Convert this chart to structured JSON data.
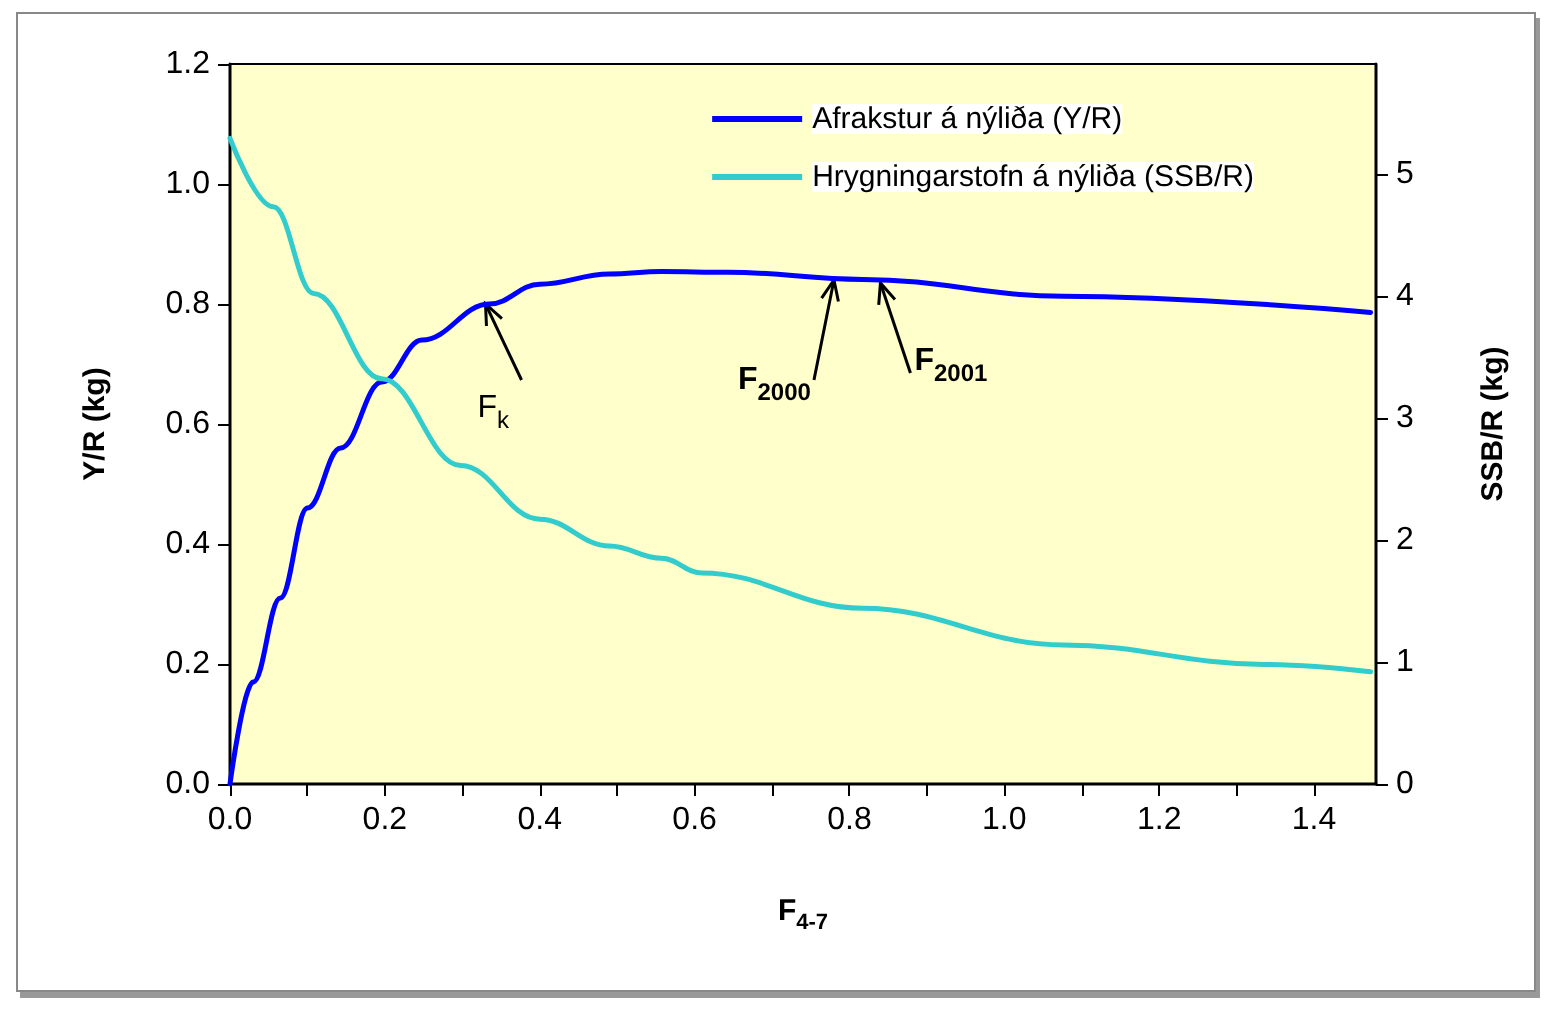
{
  "chart_data": {
    "type": "line",
    "xlabel": "F$_{4-7}$",
    "ylabel": "Y/R (kg)",
    "y2label": "SSB/R (kg)",
    "xlim": [
      0,
      1.48
    ],
    "xticks": [
      {
        "value": 0,
        "label": "0.0"
      },
      {
        "value": 0.1,
        "label": null
      },
      {
        "value": 0.2,
        "label": "0.2"
      },
      {
        "value": 0.3,
        "label": null
      },
      {
        "value": 0.4,
        "label": "0.4"
      },
      {
        "value": 0.5,
        "label": null
      },
      {
        "value": 0.6,
        "label": "0.6"
      },
      {
        "value": 0.7,
        "label": null
      },
      {
        "value": 0.8,
        "label": "0.8"
      },
      {
        "value": 0.9,
        "label": null
      },
      {
        "value": 1.0,
        "label": "1.0"
      },
      {
        "value": 1.1,
        "label": null
      },
      {
        "value": 1.2,
        "label": "1.2"
      },
      {
        "value": 1.3,
        "label": null
      },
      {
        "value": 1.4,
        "label": "1.4"
      }
    ],
    "ylim": [
      0,
      1.2
    ],
    "yticks": [
      {
        "value": 0,
        "label": "0.0"
      },
      {
        "value": 0.2,
        "label": "0.2"
      },
      {
        "value": 0.4,
        "label": "0.4"
      },
      {
        "value": 0.6,
        "label": "0.6"
      },
      {
        "value": 0.8,
        "label": "0.8"
      },
      {
        "value": 1.0,
        "label": "1.0"
      },
      {
        "value": 1.2,
        "label": "1.2"
      }
    ],
    "y2lim": [
      0,
      5.9
    ],
    "y2ticks": [
      0,
      1,
      2,
      3,
      4,
      5
    ],
    "legend": "top right",
    "grid": false,
    "marker": "none",
    "line_style": "solid",
    "series": [
      {
        "name": "Afrakstur á nýliða (Y/R)",
        "color": "#0000ff",
        "x": [
          0,
          0.03,
          0.065,
          0.1,
          0.143,
          0.196,
          0.248,
          0.335,
          0.4,
          0.49,
          0.557,
          0.643,
          0.817,
          1.076,
          1.473
        ],
        "values": [
          0,
          0.17,
          0.31,
          0.46,
          0.56,
          0.67,
          0.74,
          0.8,
          0.833,
          0.85,
          0.854,
          0.853,
          0.841,
          0.813,
          0.786
        ]
      },
      {
        "name": "Hrygningarstofn á nýliða (SSB/R)",
        "color": "#33cccc",
        "axis": "y2",
        "x": [
          0,
          0.056,
          0.108,
          0.196,
          0.298,
          0.4,
          0.49,
          0.557,
          0.609,
          0.817,
          1.076,
          1.335,
          1.473
        ],
        "values": [
          5.29,
          4.73,
          4.02,
          3.32,
          2.61,
          2.17,
          1.95,
          1.85,
          1.73,
          1.44,
          1.14,
          0.98,
          0.92
        ]
      }
    ],
    "annotations": [
      {
        "text": "F$_{k}$",
        "x": 0.33,
        "y": 0.8
      },
      {
        "text": "F$_{2000}$",
        "x": 0.78,
        "y": 0.84
      },
      {
        "text": "F$_{2001}$",
        "x": 0.84,
        "y": 0.835
      }
    ]
  }
}
